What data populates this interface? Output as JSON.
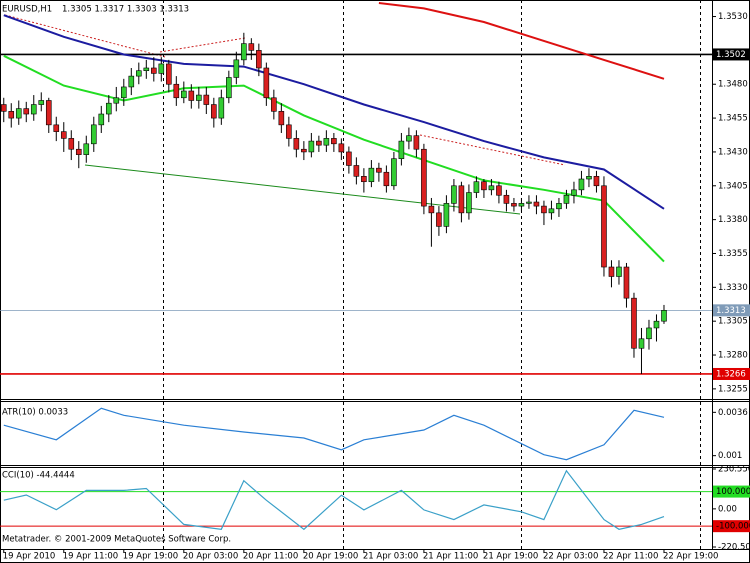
{
  "chart_data": [
    {
      "type": "candlestick",
      "title": "EURUSD,H1",
      "subtitle": "1.3305 1.3317 1.3303 1.3313",
      "xlim": [
        -0.5,
        94.4
      ],
      "ylim": [
        1.3249,
        1.354
      ],
      "yticks": [
        {
          "value": 1.353,
          "label": "1.3530"
        },
        {
          "value": 1.348,
          "label": "1.3480"
        },
        1.3455,
        {
          "value": 1.343,
          "label": "1.3430"
        },
        1.3405,
        {
          "value": 1.338,
          "label": "1.3380"
        },
        1.3355,
        {
          "value": 1.333,
          "label": "1.3330"
        },
        1.3305,
        {
          "value": 1.328,
          "label": "1.3280"
        },
        1.3255
      ],
      "hlines": [
        {
          "value": 1.3502,
          "color": "#000000"
        },
        {
          "value": 1.3313,
          "color": "#7f9bb8"
        },
        {
          "value": 1.3266,
          "color": "#e00000"
        }
      ],
      "bull_color": "#33cc33",
      "bear_color": "#d92020",
      "open": [
        1.3465,
        1.346,
        1.3455,
        1.3462,
        1.3458,
        1.3465,
        1.3468,
        1.345,
        1.3445,
        1.344,
        1.3432,
        1.3428,
        1.3436,
        1.345,
        1.3458,
        1.3466,
        1.347,
        1.3478,
        1.3486,
        1.349,
        1.3492,
        1.3488,
        1.3495,
        1.348,
        1.347,
        1.3475,
        1.3468,
        1.3472,
        1.3465,
        1.3455,
        1.347,
        1.3485,
        1.3498,
        1.351,
        1.3505,
        1.3492,
        1.347,
        1.346,
        1.345,
        1.344,
        1.3432,
        1.343,
        1.3438,
        1.3435,
        1.344,
        1.3436,
        1.343,
        1.342,
        1.3412,
        1.3408,
        1.3418,
        1.3415,
        1.3405,
        1.3425,
        1.3438,
        1.3442,
        1.3432,
        1.339,
        1.3385,
        1.3375,
        1.3392,
        1.3405,
        1.3385,
        1.34,
        1.3408,
        1.3402,
        1.3405,
        1.3398,
        1.3392,
        1.339,
        1.3392,
        1.3393,
        1.339,
        1.3385,
        1.3388,
        1.3392,
        1.3398,
        1.3402,
        1.341,
        1.3412,
        1.3405,
        1.3345,
        1.3338,
        1.3345,
        1.3322,
        1.3285,
        1.3292,
        1.33,
        1.3305
      ],
      "high": [
        1.347,
        1.3466,
        1.3468,
        1.3467,
        1.3472,
        1.3474,
        1.347,
        1.3456,
        1.3452,
        1.3446,
        1.3438,
        1.3442,
        1.3456,
        1.3464,
        1.3472,
        1.3478,
        1.3484,
        1.3492,
        1.3496,
        1.3498,
        1.35,
        1.35,
        1.3498,
        1.3486,
        1.3482,
        1.348,
        1.3478,
        1.3478,
        1.347,
        1.3476,
        1.349,
        1.3504,
        1.3518,
        1.3514,
        1.351,
        1.3496,
        1.3476,
        1.3466,
        1.3456,
        1.3446,
        1.3438,
        1.3444,
        1.3442,
        1.3446,
        1.3444,
        1.344,
        1.3434,
        1.3426,
        1.3418,
        1.3424,
        1.3422,
        1.342,
        1.343,
        1.3444,
        1.3448,
        1.3446,
        1.3436,
        1.3396,
        1.339,
        1.3398,
        1.341,
        1.3408,
        1.3406,
        1.3412,
        1.341,
        1.341,
        1.3408,
        1.3402,
        1.3396,
        1.3396,
        1.3398,
        1.3398,
        1.3394,
        1.3394,
        1.3396,
        1.3402,
        1.3408,
        1.3416,
        1.3418,
        1.3416,
        1.3412,
        1.335,
        1.335,
        1.3348,
        1.3326,
        1.33,
        1.3306,
        1.331,
        1.3317
      ],
      "low": [
        1.3452,
        1.3448,
        1.345,
        1.3452,
        1.3453,
        1.346,
        1.3444,
        1.3438,
        1.343,
        1.3424,
        1.3418,
        1.3422,
        1.343,
        1.3444,
        1.3452,
        1.346,
        1.3464,
        1.3472,
        1.348,
        1.3484,
        1.3482,
        1.3482,
        1.3474,
        1.3464,
        1.3466,
        1.3462,
        1.3462,
        1.3458,
        1.3448,
        1.345,
        1.3466,
        1.348,
        1.3494,
        1.3498,
        1.3486,
        1.3464,
        1.3454,
        1.3444,
        1.3434,
        1.3426,
        1.3424,
        1.3426,
        1.343,
        1.343,
        1.343,
        1.3424,
        1.3414,
        1.3406,
        1.34,
        1.3404,
        1.3408,
        1.34,
        1.3402,
        1.342,
        1.3432,
        1.3426,
        1.3384,
        1.336,
        1.3368,
        1.337,
        1.3386,
        1.3378,
        1.338,
        1.3396,
        1.3396,
        1.3398,
        1.3392,
        1.3386,
        1.3386,
        1.3386,
        1.3388,
        1.3384,
        1.3376,
        1.338,
        1.3382,
        1.3388,
        1.3392,
        1.3398,
        1.3404,
        1.34,
        1.3338,
        1.333,
        1.3332,
        1.3315,
        1.3278,
        1.3266,
        1.3284,
        1.329,
        1.3303
      ],
      "close": [
        1.346,
        1.3455,
        1.3462,
        1.3458,
        1.3465,
        1.3468,
        1.345,
        1.3445,
        1.344,
        1.3432,
        1.3428,
        1.3436,
        1.345,
        1.3458,
        1.3466,
        1.347,
        1.3478,
        1.3486,
        1.349,
        1.3492,
        1.3488,
        1.3495,
        1.348,
        1.347,
        1.3475,
        1.3468,
        1.3472,
        1.3465,
        1.3455,
        1.347,
        1.3485,
        1.3498,
        1.351,
        1.3505,
        1.3492,
        1.347,
        1.346,
        1.345,
        1.344,
        1.3432,
        1.343,
        1.3438,
        1.3435,
        1.344,
        1.3436,
        1.343,
        1.342,
        1.3412,
        1.3408,
        1.3418,
        1.3415,
        1.3405,
        1.3425,
        1.3438,
        1.3442,
        1.3432,
        1.339,
        1.3385,
        1.3375,
        1.3392,
        1.3405,
        1.3385,
        1.34,
        1.3408,
        1.3402,
        1.3405,
        1.3398,
        1.3392,
        1.339,
        1.3392,
        1.3393,
        1.339,
        1.3385,
        1.3388,
        1.3392,
        1.3398,
        1.3402,
        1.341,
        1.3412,
        1.3405,
        1.3345,
        1.3338,
        1.3345,
        1.3322,
        1.3285,
        1.3292,
        1.33,
        1.3305,
        1.3313
      ],
      "series": [
        {
          "color": "#1c1ca0",
          "x": [
            0,
            8,
            16,
            24,
            32,
            40,
            48,
            56,
            64,
            72,
            80,
            88
          ],
          "values": [
            1.3531,
            1.3515,
            1.3502,
            1.3495,
            1.3493,
            1.348,
            1.3465,
            1.3452,
            1.3438,
            1.3426,
            1.3417,
            1.3388
          ]
        },
        {
          "color": "#22dd22",
          "x": [
            0,
            8,
            16,
            24,
            32,
            40,
            48,
            56,
            64,
            72,
            80,
            88
          ],
          "values": [
            1.3501,
            1.3479,
            1.3468,
            1.3477,
            1.3479,
            1.3457,
            1.3439,
            1.3424,
            1.3409,
            1.3402,
            1.3394,
            1.3349
          ]
        },
        {
          "color": "#dd1111",
          "x": [
            50,
            56,
            64,
            72,
            80,
            88
          ],
          "values": [
            1.354,
            1.3536,
            1.3526,
            1.3512,
            1.3498,
            1.3484
          ]
        }
      ]
    },
    {
      "type": "line",
      "title": "ATR(10) 0.0033",
      "ylim": [
        0.0005,
        0.0041
      ],
      "yticks": [
        0.0036,
        0.001
      ],
      "color": "#2a7fd4",
      "x": [
        0,
        7,
        13,
        16,
        24,
        32,
        40,
        45,
        48,
        56,
        60,
        64,
        72,
        75,
        80,
        84,
        88
      ],
      "values": [
        0.00283,
        0.00195,
        0.00384,
        0.00342,
        0.00283,
        0.00242,
        0.00206,
        0.00135,
        0.00195,
        0.00254,
        0.00342,
        0.00283,
        0.00106,
        0.00076,
        0.00165,
        0.00372,
        0.0033
      ]
    },
    {
      "type": "line",
      "title": "CCI(10) -44.4444",
      "ylim": [
        -220.502,
        230.5569
      ],
      "yticks": [
        230.5569,
        {
          "value": 100,
          "label": "100.000",
          "color": "#22dd22"
        },
        {
          "value": 0,
          "label": "0.00"
        },
        {
          "value": -100,
          "label": "-100.000",
          "color": "#e00000"
        },
        -220.502
      ],
      "color": "#3aa0c8",
      "x": [
        0,
        3,
        7,
        11,
        16,
        19,
        24,
        29,
        32,
        35,
        40,
        45,
        48,
        53,
        56,
        60,
        64,
        69,
        72,
        75,
        80,
        82,
        85,
        88
      ],
      "values": [
        50,
        80,
        -5,
        107,
        107,
        118,
        -90,
        -118,
        163,
        50,
        -118,
        79,
        -6,
        107,
        -6,
        -62,
        23,
        -17,
        -62,
        220,
        -62,
        -118,
        -90,
        -44.4444
      ],
      "xticks": [
        {
          "value": 0,
          "label": "19 Apr 2010"
        },
        {
          "value": 8,
          "label": "19 Apr 11:00"
        },
        {
          "value": 16,
          "label": "19 Apr 19:00"
        },
        {
          "value": 24,
          "label": "20 Apr 03:00"
        },
        {
          "value": 32,
          "label": "20 Apr 11:00"
        },
        {
          "value": 40,
          "label": "20 Apr 19:00"
        },
        {
          "value": 48,
          "label": "21 Apr 03:00"
        },
        {
          "value": 56,
          "label": "21 Apr 11:00"
        },
        {
          "value": 64,
          "label": "21 Apr 19:00"
        },
        {
          "value": 72,
          "label": "22 Apr 03:00"
        },
        {
          "value": 80,
          "label": "22 Apr 11:00"
        },
        {
          "value": 88,
          "label": "22 Apr 19:00"
        }
      ]
    }
  ],
  "footer": "Metatrader. © 2001-2009 MetaQuotes Software Corp."
}
